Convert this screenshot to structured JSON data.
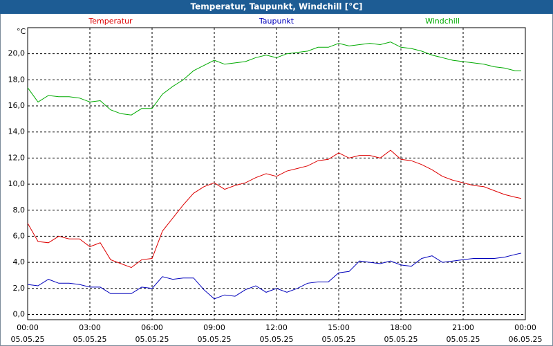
{
  "chart_data": {
    "type": "line",
    "title": "Temperatur, Taupunkt, Windchill [°C]",
    "ylabel": "°C",
    "x": [
      0,
      0.5,
      1,
      1.5,
      2,
      2.5,
      3,
      3.5,
      4,
      4.5,
      5,
      5.5,
      6,
      6.5,
      7,
      7.5,
      8,
      8.5,
      9,
      9.5,
      10,
      10.5,
      11,
      11.5,
      12,
      12.5,
      13,
      13.5,
      14,
      14.5,
      15,
      15.5,
      16,
      16.5,
      17,
      17.5,
      18,
      18.5,
      19,
      19.5,
      20,
      20.5,
      21,
      21.5,
      22,
      22.5,
      23,
      23.5,
      23.8
    ],
    "series": [
      {
        "name": "Temperatur",
        "color": "#dd0000",
        "values": [
          7.0,
          5.6,
          5.5,
          6.0,
          5.8,
          5.8,
          5.2,
          5.5,
          4.2,
          3.9,
          3.6,
          4.2,
          4.3,
          6.4,
          7.4,
          8.4,
          9.3,
          9.8,
          10.1,
          9.6,
          9.9,
          10.1,
          10.5,
          10.8,
          10.6,
          11.0,
          11.2,
          11.4,
          11.8,
          11.9,
          12.4,
          12.0,
          12.2,
          12.2,
          12.0,
          12.6,
          11.9,
          11.8,
          11.5,
          11.1,
          10.6,
          10.3,
          10.1,
          9.9,
          9.8,
          9.5,
          9.2,
          9.0,
          8.9
        ]
      },
      {
        "name": "Taupunkt",
        "color": "#0000bb",
        "values": [
          2.3,
          2.2,
          2.7,
          2.4,
          2.4,
          2.3,
          2.1,
          2.1,
          1.6,
          1.6,
          1.6,
          2.1,
          2.0,
          2.9,
          2.7,
          2.8,
          2.8,
          1.9,
          1.2,
          1.5,
          1.4,
          1.9,
          2.2,
          1.7,
          2.0,
          1.7,
          2.0,
          2.4,
          2.5,
          2.5,
          3.2,
          3.3,
          4.1,
          4.0,
          3.9,
          4.1,
          3.8,
          3.7,
          4.3,
          4.5,
          4.0,
          4.1,
          4.2,
          4.3,
          4.3,
          4.3,
          4.4,
          4.6,
          4.7
        ]
      },
      {
        "name": "Windchill",
        "color": "#00aa00",
        "values": [
          17.4,
          16.3,
          16.8,
          16.7,
          16.7,
          16.6,
          16.3,
          16.4,
          15.7,
          15.4,
          15.3,
          15.8,
          15.8,
          16.9,
          17.5,
          18.0,
          18.7,
          19.1,
          19.5,
          19.2,
          19.3,
          19.4,
          19.7,
          19.9,
          19.7,
          20.0,
          20.1,
          20.2,
          20.5,
          20.5,
          20.8,
          20.6,
          20.7,
          20.8,
          20.7,
          20.9,
          20.5,
          20.4,
          20.2,
          19.9,
          19.7,
          19.5,
          19.4,
          19.3,
          19.2,
          19.0,
          18.9,
          18.7,
          18.7
        ]
      }
    ],
    "xlim": [
      0,
      24
    ],
    "xticks": [
      {
        "value": 0,
        "label": "00:00",
        "date": "05.05.25"
      },
      {
        "value": 3,
        "label": "03:00",
        "date": "05.05.25"
      },
      {
        "value": 6,
        "label": "06:00",
        "date": "05.05.25"
      },
      {
        "value": 9,
        "label": "09:00",
        "date": "05.05.25"
      },
      {
        "value": 12,
        "label": "12:00",
        "date": "05.05.25"
      },
      {
        "value": 15,
        "label": "15:00",
        "date": "05.05.25"
      },
      {
        "value": 18,
        "label": "18:00",
        "date": "05.05.25"
      },
      {
        "value": 21,
        "label": "21:00",
        "date": "05.05.25"
      },
      {
        "value": 24,
        "label": "00:00",
        "date": "06.05.25"
      }
    ],
    "ylim": [
      -0.4,
      22
    ],
    "yticks": [
      {
        "value": 0,
        "label": "0,0"
      },
      {
        "value": 2,
        "label": "2,0"
      },
      {
        "value": 4,
        "label": "4,0"
      },
      {
        "value": 6,
        "label": "6,0"
      },
      {
        "value": 8,
        "label": "8,0"
      },
      {
        "value": 10,
        "label": "10,0"
      },
      {
        "value": 12,
        "label": "12,0"
      },
      {
        "value": 14,
        "label": "14,0"
      },
      {
        "value": 16,
        "label": "16,0"
      },
      {
        "value": 18,
        "label": "18,0"
      },
      {
        "value": 20,
        "label": "20,0"
      }
    ],
    "grid": true
  }
}
